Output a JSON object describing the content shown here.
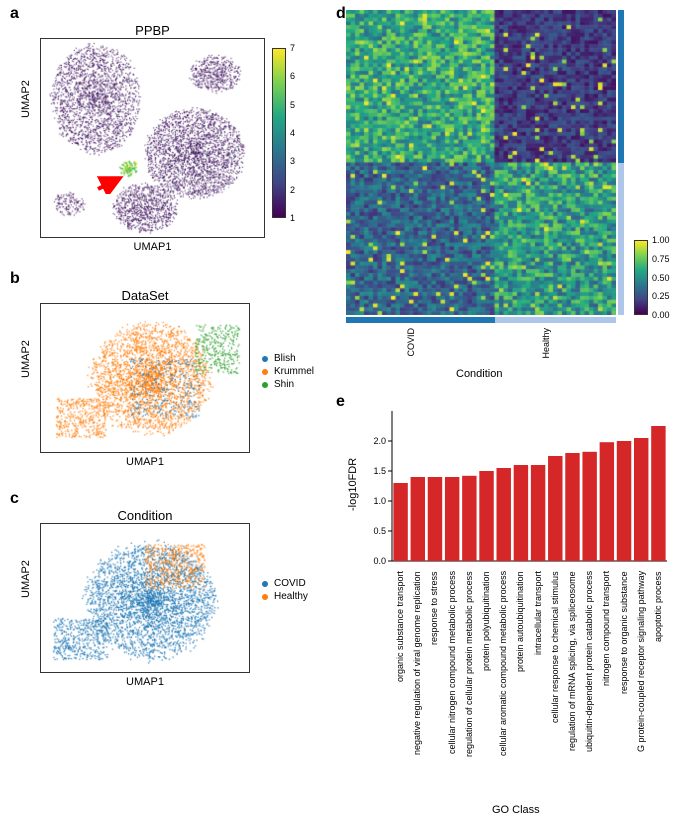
{
  "panels": {
    "a": {
      "label": "a",
      "title": "PPBP",
      "xlabel": "UMAP1",
      "ylabel": "UMAP2"
    },
    "b": {
      "label": "b",
      "title": "DataSet",
      "xlabel": "UMAP1",
      "ylabel": "UMAP2"
    },
    "c": {
      "label": "c",
      "title": "Condition",
      "xlabel": "UMAP1",
      "ylabel": "UMAP2"
    },
    "d": {
      "label": "d",
      "xlabel": "Condition"
    },
    "e": {
      "label": "e",
      "xlabel": "GO Class",
      "ylabel": "-log10FDR"
    }
  },
  "panel_a": {
    "colorbar_ticks": [
      "7",
      "6",
      "5",
      "4",
      "3",
      "2",
      "1"
    ],
    "colorbar_colors": [
      "#fde725",
      "#7ad151",
      "#22a884",
      "#2a788e",
      "#414487",
      "#440154"
    ],
    "arrow_color": "#ff0000",
    "point_color_main": "#3b0e5a"
  },
  "panel_b": {
    "legend": [
      {
        "label": "Blish",
        "color": "#1f77b4"
      },
      {
        "label": "Krummel",
        "color": "#ff7f0e"
      },
      {
        "label": "Shin",
        "color": "#2ca02c"
      }
    ]
  },
  "panel_c": {
    "legend": [
      {
        "label": "COVID",
        "color": "#1f77b4"
      },
      {
        "label": "Healthy",
        "color": "#ff7f0e"
      }
    ]
  },
  "panel_d": {
    "colorbar_ticks": [
      "1.00",
      "0.75",
      "0.50",
      "0.25",
      "0.00"
    ],
    "colorbar_colors": [
      "#fde725",
      "#7ad151",
      "#22a884",
      "#2a788e",
      "#414487",
      "#440154"
    ],
    "condition_labels": [
      "COVID",
      "Healthy"
    ],
    "strip_colors": {
      "covid": "#1f77b4",
      "healthy": "#aec7e8"
    },
    "row_strip_colors": [
      "#1f77b4",
      "#aec7e8"
    ]
  },
  "panel_e": {
    "bar_color": "#d62728",
    "ylim": [
      0,
      2.5
    ],
    "yticks": [
      "0.0",
      "0.5",
      "1.0",
      "1.5",
      "2.0"
    ],
    "bars": [
      {
        "label": "organic substance transport",
        "value": 1.3
      },
      {
        "label": "negative regulation of viral genome replication",
        "value": 1.4
      },
      {
        "label": "response to stress",
        "value": 1.4
      },
      {
        "label": "cellular nitrogen compound metabolic process",
        "value": 1.4
      },
      {
        "label": "regulation of cellular protein metabolic process",
        "value": 1.42
      },
      {
        "label": "protein polyubiquitination",
        "value": 1.5
      },
      {
        "label": "cellular aromatic compound metabolic process",
        "value": 1.55
      },
      {
        "label": "protein autoubiquitination",
        "value": 1.6
      },
      {
        "label": "intracellular transport",
        "value": 1.6
      },
      {
        "label": "cellular response to chemical stimulus",
        "value": 1.75
      },
      {
        "label": "regulation of mRNA splicing, via spliceosome",
        "value": 1.8
      },
      {
        "label": "ubiquitin-dependent protein catabolic process",
        "value": 1.82
      },
      {
        "label": "nitrogen compound transport",
        "value": 1.98
      },
      {
        "label": "response to organic substance",
        "value": 2.0
      },
      {
        "label": "G protein-coupled receptor signaling pathway",
        "value": 2.05
      },
      {
        "label": "apoptotic process",
        "value": 2.25
      }
    ]
  }
}
